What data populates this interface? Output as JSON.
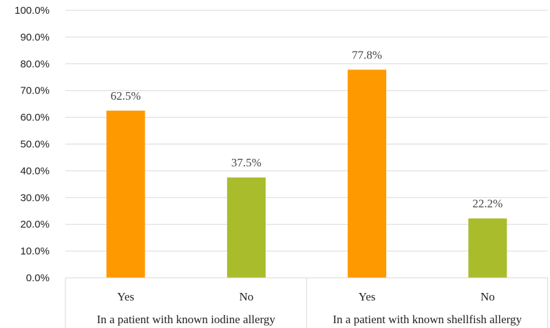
{
  "chart_data": {
    "type": "bar",
    "y_tick_labels": [
      "0.0%",
      "10.0%",
      "20.0%",
      "30.0%",
      "40.0%",
      "50.0%",
      "60.0%",
      "70.0%",
      "80.0%",
      "90.0%",
      "100.0%"
    ],
    "ylim": [
      0,
      100
    ],
    "grid": true,
    "groups": [
      {
        "label": "In a patient with known iodine allergy",
        "bars": [
          {
            "category": "Yes",
            "value": 62.5,
            "data_label": "62.5%",
            "color": "#FF9900"
          },
          {
            "category": "No",
            "value": 37.5,
            "data_label": "37.5%",
            "color": "#A9BC2C"
          }
        ]
      },
      {
        "label": "In a patient with known shellfish allergy",
        "bars": [
          {
            "category": "Yes",
            "value": 77.8,
            "data_label": "77.8%",
            "color": "#FF9900"
          },
          {
            "category": "No",
            "value": 22.2,
            "data_label": "22.2%",
            "color": "#A9BC2C"
          }
        ]
      }
    ]
  }
}
